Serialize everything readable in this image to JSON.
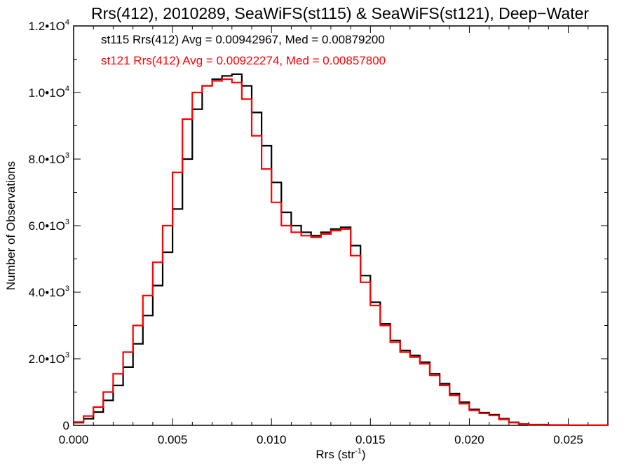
{
  "chart_data": {
    "type": "line",
    "title": "Rrs(412), 2010289, SeaWiFS(st115) & SeaWiFS(st121), Deep−Water",
    "xlabel": "Rrs (str",
    "xlabel_sup": "-1",
    "xlabel_close": ")",
    "ylabel": "Number of Observations",
    "xlim": [
      0.0,
      0.027
    ],
    "ylim": [
      0,
      12000
    ],
    "xticks": [
      {
        "value": 0.0,
        "label": "0.000"
      },
      {
        "value": 0.005,
        "label": "0.005"
      },
      {
        "value": 0.01,
        "label": "0.010"
      },
      {
        "value": 0.015,
        "label": "0.015"
      },
      {
        "value": 0.02,
        "label": "0.020"
      },
      {
        "value": 0.025,
        "label": "0.025"
      }
    ],
    "yticks": [
      {
        "value": 0,
        "base": "0",
        "exp": ""
      },
      {
        "value": 2000,
        "base": "2.0•1O",
        "exp": "3"
      },
      {
        "value": 4000,
        "base": "4.0•1O",
        "exp": "3"
      },
      {
        "value": 6000,
        "base": "6.0•1O",
        "exp": "3"
      },
      {
        "value": 8000,
        "base": "8.0•1O",
        "exp": "3"
      },
      {
        "value": 10000,
        "base": "1.0•1O",
        "exp": "4"
      },
      {
        "value": 12000,
        "base": "1.2•1O",
        "exp": "4"
      }
    ],
    "grid": false,
    "legend_placement": "top-left",
    "series": [
      {
        "name": "st115",
        "legend": "st115 Rrs(412) Avg = 0.00942967, Med = 0.00879200",
        "color": "#000000",
        "x": [
          0.0,
          0.0005,
          0.001,
          0.0015,
          0.002,
          0.0025,
          0.003,
          0.0035,
          0.004,
          0.0045,
          0.005,
          0.0055,
          0.006,
          0.0065,
          0.007,
          0.0075,
          0.008,
          0.0085,
          0.009,
          0.0095,
          0.01,
          0.0105,
          0.011,
          0.0115,
          0.012,
          0.0125,
          0.013,
          0.0135,
          0.014,
          0.0145,
          0.015,
          0.0155,
          0.016,
          0.0165,
          0.017,
          0.0175,
          0.018,
          0.0185,
          0.019,
          0.0195,
          0.02,
          0.0205,
          0.021,
          0.0215,
          0.022,
          0.0225,
          0.023,
          0.024,
          0.025,
          0.026,
          0.027
        ],
        "y": [
          80,
          200,
          400,
          750,
          1200,
          1750,
          2450,
          3300,
          4200,
          5200,
          6500,
          8000,
          9500,
          10200,
          10400,
          10500,
          10550,
          10200,
          9400,
          8400,
          7300,
          6400,
          6000,
          5800,
          5700,
          5800,
          5900,
          5950,
          5400,
          4500,
          3700,
          3050,
          2550,
          2250,
          2100,
          1900,
          1550,
          1250,
          950,
          700,
          480,
          380,
          320,
          200,
          90,
          40,
          20,
          10,
          5,
          3,
          0
        ]
      },
      {
        "name": "st121",
        "legend": "st121 Rrs(412) Avg = 0.00922274, Med = 0.00857800",
        "color": "#ff0000",
        "x": [
          0.0,
          0.0005,
          0.001,
          0.0015,
          0.002,
          0.0025,
          0.003,
          0.0035,
          0.004,
          0.0045,
          0.005,
          0.0055,
          0.006,
          0.0065,
          0.007,
          0.0075,
          0.008,
          0.0085,
          0.009,
          0.0095,
          0.01,
          0.0105,
          0.011,
          0.0115,
          0.012,
          0.0125,
          0.013,
          0.0135,
          0.014,
          0.0145,
          0.015,
          0.0155,
          0.016,
          0.0165,
          0.017,
          0.0175,
          0.018,
          0.0185,
          0.019,
          0.0195,
          0.02,
          0.0205,
          0.021,
          0.0215,
          0.022,
          0.0225,
          0.023,
          0.024,
          0.025,
          0.026,
          0.027
        ],
        "y": [
          100,
          280,
          550,
          1000,
          1550,
          2200,
          3000,
          3900,
          4900,
          6000,
          7600,
          9200,
          10000,
          10200,
          10350,
          10400,
          10300,
          9800,
          8700,
          7700,
          6700,
          6000,
          5800,
          5700,
          5650,
          5750,
          5850,
          5900,
          5100,
          4300,
          3600,
          3000,
          2500,
          2200,
          2050,
          1850,
          1500,
          1200,
          900,
          650,
          450,
          360,
          300,
          180,
          80,
          35,
          15,
          8,
          4,
          2,
          0
        ]
      }
    ]
  }
}
